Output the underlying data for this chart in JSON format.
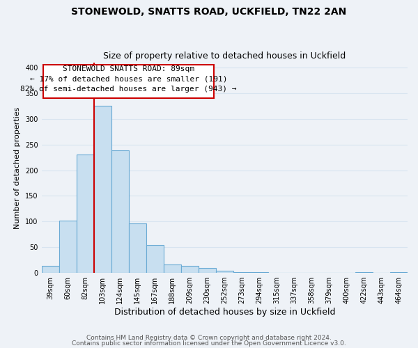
{
  "title1": "STONEWOLD, SNATTS ROAD, UCKFIELD, TN22 2AN",
  "title2": "Size of property relative to detached houses in Uckfield",
  "xlabel": "Distribution of detached houses by size in Uckfield",
  "ylabel": "Number of detached properties",
  "bar_labels": [
    "39sqm",
    "60sqm",
    "82sqm",
    "103sqm",
    "124sqm",
    "145sqm",
    "167sqm",
    "188sqm",
    "209sqm",
    "230sqm",
    "252sqm",
    "273sqm",
    "294sqm",
    "315sqm",
    "337sqm",
    "358sqm",
    "379sqm",
    "400sqm",
    "422sqm",
    "443sqm",
    "464sqm"
  ],
  "bar_values": [
    13,
    102,
    230,
    326,
    238,
    96,
    55,
    16,
    14,
    9,
    4,
    1,
    1,
    0,
    0,
    0,
    0,
    0,
    1,
    0,
    1
  ],
  "bar_color": "#c8dff0",
  "bar_edge_color": "#6aaad4",
  "ylim": [
    0,
    410
  ],
  "yticks": [
    0,
    50,
    100,
    150,
    200,
    250,
    300,
    350,
    400
  ],
  "vline_x": 2.5,
  "vline_color": "#cc0000",
  "annotation_line1": "STONEWOLD SNATTS ROAD: 89sqm",
  "annotation_line2": "← 17% of detached houses are smaller (191)",
  "annotation_line3": "82% of semi-detached houses are larger (943) →",
  "annotation_box_edge_color": "#cc0000",
  "footer1": "Contains HM Land Registry data © Crown copyright and database right 2024.",
  "footer2": "Contains public sector information licensed under the Open Government Licence v3.0.",
  "background_color": "#eef2f7",
  "grid_color": "#d8e4f0",
  "title1_fontsize": 10,
  "title2_fontsize": 9,
  "xlabel_fontsize": 9,
  "ylabel_fontsize": 8,
  "tick_fontsize": 7,
  "annotation_fontsize": 8,
  "footer_fontsize": 6.5
}
